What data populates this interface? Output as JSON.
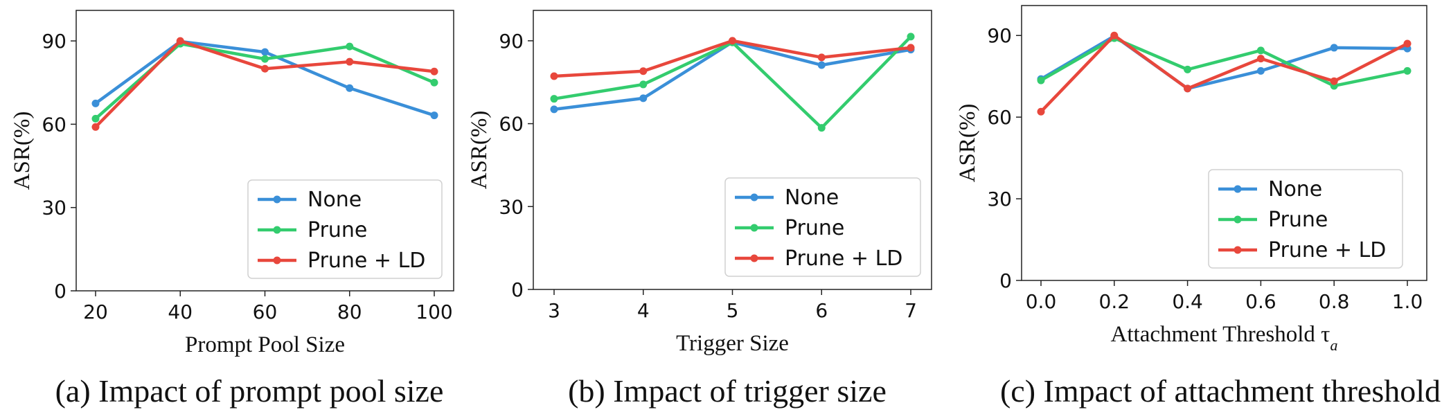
{
  "colors": {
    "None": "#3a8fd8",
    "Prune": "#33cc6e",
    "Prune + LD": "#e8473c"
  },
  "chart_data": [
    {
      "type": "line",
      "x": [
        20,
        40,
        60,
        80,
        100
      ],
      "xticks": [
        "20",
        "40",
        "60",
        "80",
        "100"
      ],
      "yticks": [
        "0",
        "30",
        "60",
        "90"
      ],
      "ylim": [
        0,
        101
      ],
      "xlabel": "Prompt Pool Size",
      "ylabel": "ASR(%)",
      "caption": "(a) Impact of prompt pool size",
      "legend_position": "lower-right",
      "series": [
        {
          "name": "None",
          "values": [
            67.5,
            89.8,
            86.0,
            73.0,
            63.2
          ]
        },
        {
          "name": "Prune",
          "values": [
            62.0,
            89.0,
            83.5,
            88.0,
            75.0
          ]
        },
        {
          "name": "Prune + LD",
          "values": [
            59.0,
            90.0,
            80.0,
            82.5,
            79.0
          ]
        }
      ]
    },
    {
      "type": "line",
      "x": [
        3,
        4,
        5,
        6,
        7
      ],
      "xticks": [
        "3",
        "4",
        "5",
        "6",
        "7"
      ],
      "yticks": [
        "0",
        "30",
        "60",
        "90"
      ],
      "ylim": [
        0,
        101
      ],
      "xlabel": "Trigger Size",
      "ylabel": "ASR(%)",
      "caption": "(b) Impact of trigger size",
      "legend_position": "lower-right",
      "series": [
        {
          "name": "None",
          "values": [
            65.2,
            69.2,
            89.5,
            81.2,
            86.8
          ]
        },
        {
          "name": "Prune",
          "values": [
            69.0,
            74.2,
            89.4,
            58.5,
            91.5
          ]
        },
        {
          "name": "Prune + LD",
          "values": [
            77.2,
            79.0,
            90.0,
            84.0,
            87.5
          ]
        }
      ]
    },
    {
      "type": "line",
      "x": [
        0.0,
        0.2,
        0.4,
        0.6,
        0.8,
        1.0
      ],
      "xticks": [
        "0.0",
        "0.2",
        "0.4",
        "0.6",
        "0.8",
        "1.0"
      ],
      "yticks": [
        "0",
        "30",
        "60",
        "90"
      ],
      "ylim": [
        0,
        101
      ],
      "xlabel": "Attachment Threshold τ",
      "xlabel_subscript": "a",
      "ylabel": "ASR(%)",
      "caption": "(c) Impact of attachment threshold",
      "legend_position": "center-right",
      "series": [
        {
          "name": "None",
          "values": [
            74.0,
            89.8,
            70.5,
            77.0,
            85.5,
            85.2
          ]
        },
        {
          "name": "Prune",
          "values": [
            73.5,
            89.0,
            77.5,
            84.5,
            71.5,
            77.0
          ]
        },
        {
          "name": "Prune + LD",
          "values": [
            62.0,
            90.0,
            70.5,
            81.5,
            73.2,
            87.0
          ]
        }
      ]
    }
  ]
}
